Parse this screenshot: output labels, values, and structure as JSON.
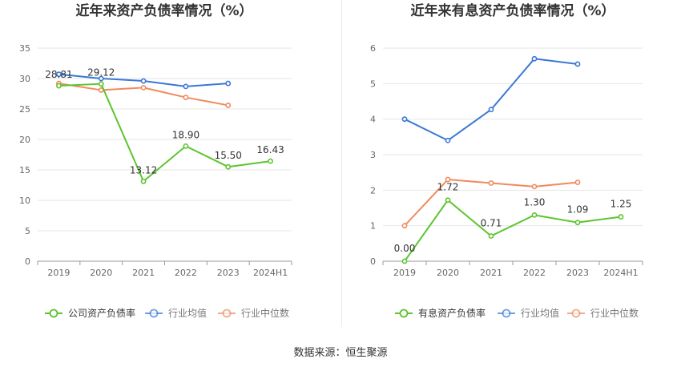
{
  "source_note": "数据来源：恒生聚源",
  "chart_data": [
    {
      "type": "line",
      "title": "近年来资产负债率情况（%）",
      "categories": [
        "2019",
        "2020",
        "2021",
        "2022",
        "2023",
        "2024H1"
      ],
      "ylim": [
        0,
        35
      ],
      "yticks": [
        0,
        5,
        10,
        15,
        20,
        25,
        30,
        35
      ],
      "grid": true,
      "legend_position": "bottom",
      "series": [
        {
          "name": "公司资产负债率",
          "color": "#5cc52e",
          "values": [
            28.81,
            29.12,
            13.12,
            18.9,
            15.5,
            16.43
          ],
          "labels": [
            "28.81",
            "29.12",
            "13.12",
            "18.90",
            "15.50",
            "16.43"
          ]
        },
        {
          "name": "行业均值",
          "color": "#3a78d6",
          "values": [
            30.7,
            30.0,
            29.6,
            28.7,
            29.2,
            null
          ],
          "labels": []
        },
        {
          "name": "行业中位数",
          "color": "#f08a5d",
          "values": [
            29.2,
            28.1,
            28.5,
            26.9,
            25.6,
            null
          ],
          "labels": []
        }
      ]
    },
    {
      "type": "line",
      "title": "近年来有息资产负债率情况（%）",
      "categories": [
        "2019",
        "2020",
        "2021",
        "2022",
        "2023",
        "2024H1"
      ],
      "ylim": [
        0,
        6
      ],
      "yticks": [
        0,
        1,
        2,
        3,
        4,
        5,
        6
      ],
      "grid": true,
      "legend_position": "bottom",
      "series": [
        {
          "name": "有息资产负债率",
          "color": "#5cc52e",
          "values": [
            0.0,
            1.72,
            0.71,
            1.3,
            1.09,
            1.25
          ],
          "labels": [
            "0.00",
            "1.72",
            "0.71",
            "1.30",
            "1.09",
            "1.25"
          ]
        },
        {
          "name": "行业均值",
          "color": "#3a78d6",
          "values": [
            4.0,
            3.4,
            4.27,
            5.7,
            5.55,
            null
          ],
          "labels": []
        },
        {
          "name": "行业中位数",
          "color": "#f08a5d",
          "values": [
            1.0,
            2.3,
            2.2,
            2.1,
            2.22,
            null
          ],
          "labels": []
        }
      ]
    }
  ]
}
